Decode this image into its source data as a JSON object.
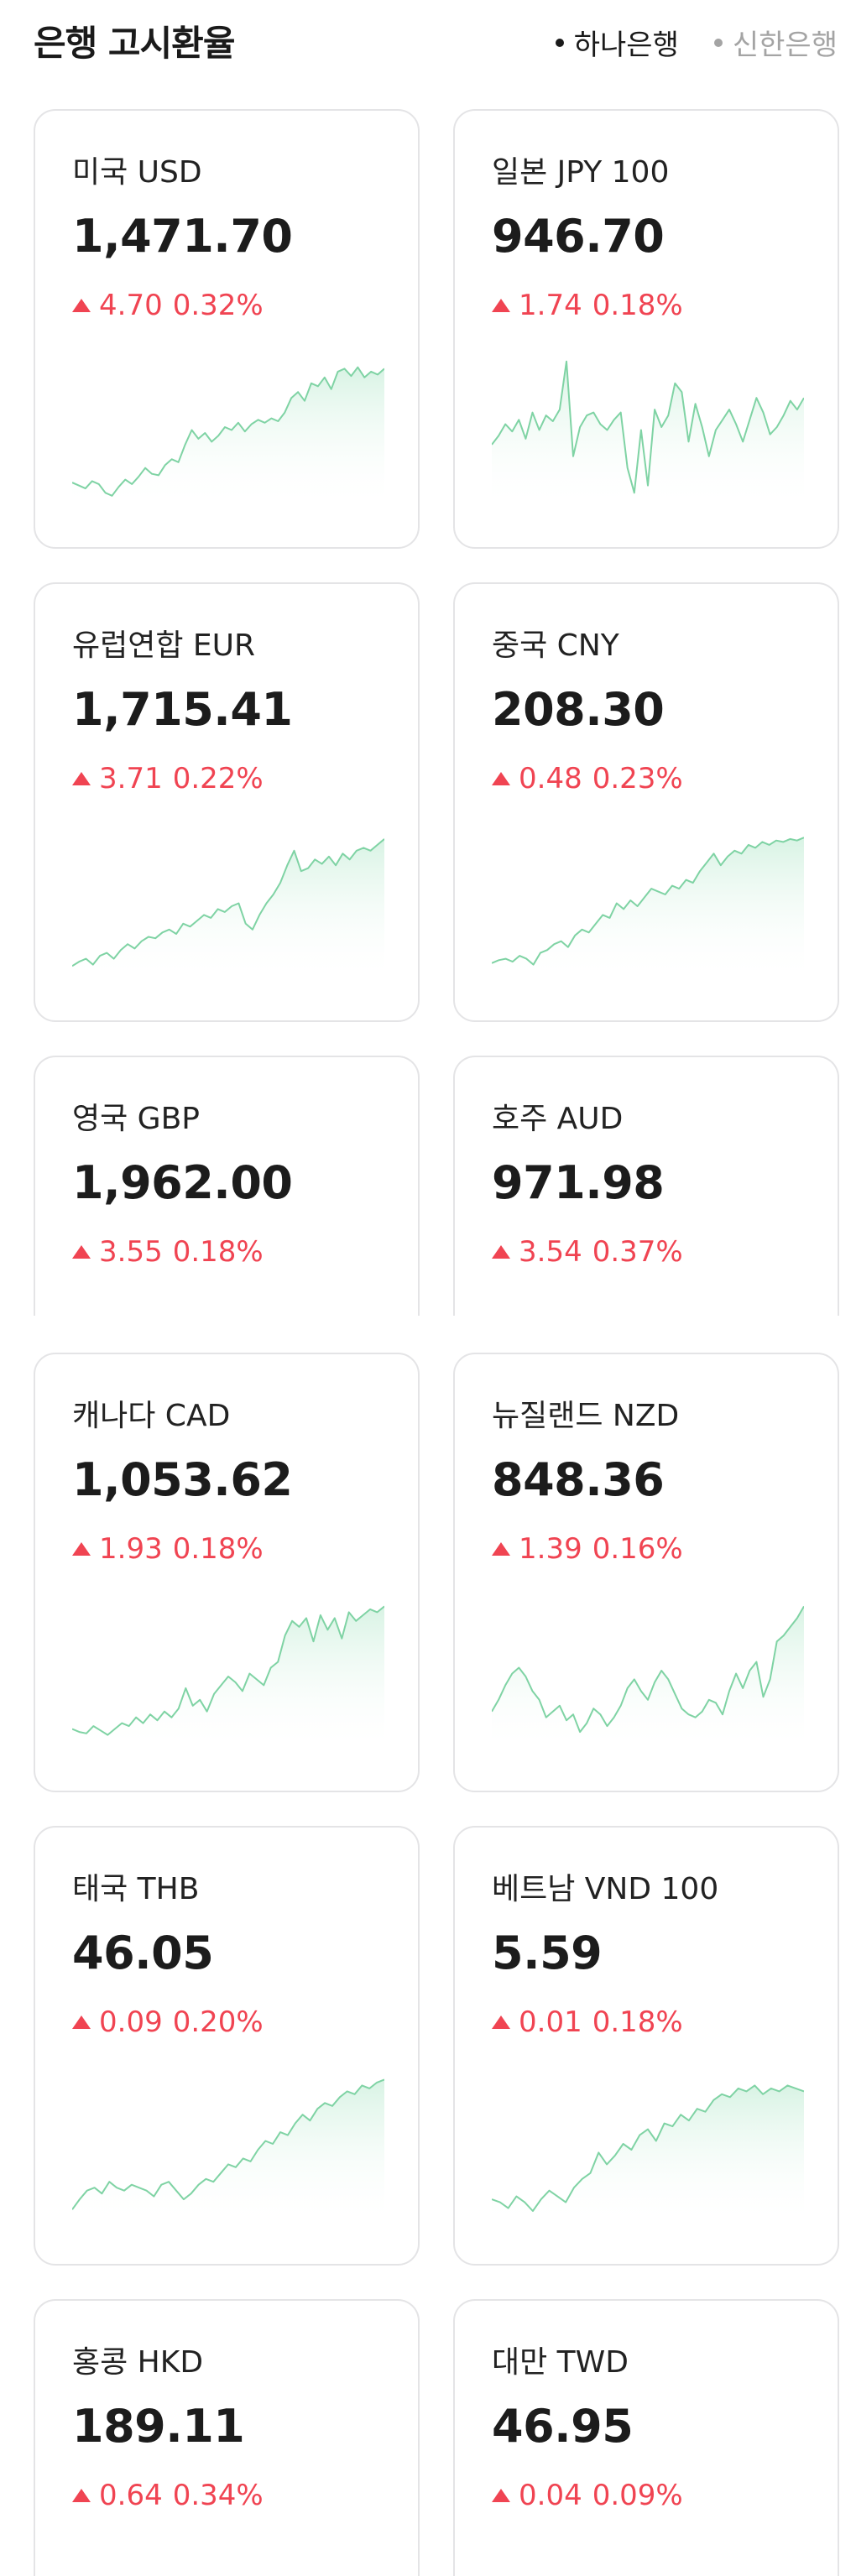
{
  "header": {
    "title": "은행 고시환율",
    "banks": [
      {
        "label": "하나은행",
        "active": true
      },
      {
        "label": "신한은행",
        "active": false
      }
    ]
  },
  "colors": {
    "up": "#f04452",
    "spark_line": "#7fd3a4",
    "spark_fill": "#d8f3e4",
    "card_border": "#e4e4e6"
  },
  "cards": [
    {
      "name": "미국 USD",
      "rate": "1,471.70",
      "change": "4.70",
      "percent": "0.32%",
      "spark": [
        0.12,
        0.1,
        0.08,
        0.13,
        0.11,
        0.05,
        0.03,
        0.09,
        0.14,
        0.11,
        0.16,
        0.22,
        0.18,
        0.17,
        0.24,
        0.28,
        0.26,
        0.38,
        0.48,
        0.42,
        0.46,
        0.4,
        0.44,
        0.5,
        0.48,
        0.53,
        0.47,
        0.52,
        0.55,
        0.53,
        0.56,
        0.54,
        0.6,
        0.7,
        0.74,
        0.68,
        0.8,
        0.78,
        0.84,
        0.76,
        0.88,
        0.9,
        0.85,
        0.91,
        0.84,
        0.88,
        0.86,
        0.9
      ]
    },
    {
      "name": "일본 JPY 100",
      "rate": "946.70",
      "change": "1.74",
      "percent": "0.18%",
      "spark": [
        0.38,
        0.44,
        0.52,
        0.47,
        0.55,
        0.42,
        0.6,
        0.48,
        0.58,
        0.54,
        0.62,
        0.95,
        0.3,
        0.5,
        0.58,
        0.6,
        0.52,
        0.48,
        0.55,
        0.6,
        0.22,
        0.05,
        0.48,
        0.1,
        0.62,
        0.5,
        0.58,
        0.8,
        0.74,
        0.4,
        0.66,
        0.5,
        0.3,
        0.48,
        0.55,
        0.62,
        0.52,
        0.4,
        0.55,
        0.7,
        0.6,
        0.45,
        0.5,
        0.58,
        0.68,
        0.62,
        0.7
      ]
    },
    {
      "name": "유럽연합 EUR",
      "rate": "1,715.41",
      "change": "3.71",
      "percent": "0.22%",
      "spark": [
        0.05,
        0.08,
        0.1,
        0.06,
        0.12,
        0.14,
        0.1,
        0.16,
        0.2,
        0.17,
        0.22,
        0.25,
        0.24,
        0.28,
        0.3,
        0.27,
        0.34,
        0.32,
        0.36,
        0.4,
        0.38,
        0.44,
        0.42,
        0.46,
        0.48,
        0.34,
        0.3,
        0.4,
        0.48,
        0.54,
        0.62,
        0.74,
        0.84,
        0.7,
        0.72,
        0.78,
        0.75,
        0.8,
        0.74,
        0.82,
        0.78,
        0.84,
        0.86,
        0.84,
        0.88,
        0.92
      ]
    },
    {
      "name": "중국 CNY",
      "rate": "208.30",
      "change": "0.48",
      "percent": "0.23%",
      "spark": [
        0.07,
        0.09,
        0.1,
        0.08,
        0.12,
        0.1,
        0.06,
        0.14,
        0.16,
        0.2,
        0.22,
        0.18,
        0.26,
        0.3,
        0.28,
        0.34,
        0.4,
        0.38,
        0.48,
        0.44,
        0.5,
        0.46,
        0.52,
        0.58,
        0.56,
        0.54,
        0.6,
        0.58,
        0.64,
        0.62,
        0.7,
        0.76,
        0.82,
        0.74,
        0.8,
        0.84,
        0.82,
        0.88,
        0.86,
        0.9,
        0.88,
        0.91,
        0.9,
        0.92,
        0.91,
        0.93
      ]
    },
    {
      "name": "영국 GBP",
      "rate": "1,962.00",
      "change": "3.55",
      "percent": "0.18%"
    },
    {
      "name": "호주 AUD",
      "rate": "971.98",
      "change": "3.54",
      "percent": "0.37%"
    },
    {
      "name": "캐나다 CAD",
      "rate": "1,053.62",
      "change": "1.93",
      "percent": "0.18%",
      "spark": [
        0.1,
        0.08,
        0.07,
        0.12,
        0.09,
        0.06,
        0.1,
        0.14,
        0.12,
        0.18,
        0.14,
        0.2,
        0.16,
        0.22,
        0.18,
        0.24,
        0.38,
        0.26,
        0.3,
        0.22,
        0.34,
        0.4,
        0.46,
        0.42,
        0.36,
        0.48,
        0.44,
        0.4,
        0.52,
        0.56,
        0.74,
        0.84,
        0.8,
        0.86,
        0.7,
        0.88,
        0.78,
        0.86,
        0.72,
        0.9,
        0.84,
        0.88,
        0.92,
        0.9,
        0.94
      ]
    },
    {
      "name": "뉴질랜드 NZD",
      "rate": "848.36",
      "change": "1.39",
      "percent": "0.16%",
      "spark": [
        0.22,
        0.3,
        0.4,
        0.48,
        0.52,
        0.46,
        0.36,
        0.3,
        0.18,
        0.22,
        0.26,
        0.16,
        0.2,
        0.08,
        0.14,
        0.24,
        0.2,
        0.12,
        0.18,
        0.26,
        0.38,
        0.44,
        0.36,
        0.3,
        0.42,
        0.5,
        0.44,
        0.34,
        0.24,
        0.2,
        0.18,
        0.22,
        0.3,
        0.28,
        0.2,
        0.36,
        0.48,
        0.38,
        0.5,
        0.56,
        0.32,
        0.44,
        0.7,
        0.74,
        0.8,
        0.86,
        0.94
      ]
    },
    {
      "name": "태국 THB",
      "rate": "46.05",
      "change": "0.09",
      "percent": "0.20%",
      "spark": [
        0.05,
        0.12,
        0.18,
        0.2,
        0.16,
        0.24,
        0.2,
        0.18,
        0.22,
        0.2,
        0.18,
        0.14,
        0.22,
        0.24,
        0.18,
        0.12,
        0.16,
        0.22,
        0.26,
        0.24,
        0.3,
        0.36,
        0.34,
        0.4,
        0.38,
        0.46,
        0.52,
        0.5,
        0.58,
        0.56,
        0.64,
        0.7,
        0.66,
        0.74,
        0.78,
        0.76,
        0.82,
        0.86,
        0.84,
        0.9,
        0.88,
        0.92,
        0.94
      ]
    },
    {
      "name": "베트남 VND 100",
      "rate": "5.59",
      "change": "0.01",
      "percent": "0.18%",
      "spark": [
        0.12,
        0.1,
        0.06,
        0.14,
        0.1,
        0.04,
        0.12,
        0.18,
        0.14,
        0.1,
        0.2,
        0.26,
        0.3,
        0.44,
        0.36,
        0.42,
        0.5,
        0.46,
        0.56,
        0.6,
        0.52,
        0.64,
        0.62,
        0.7,
        0.66,
        0.74,
        0.72,
        0.8,
        0.84,
        0.82,
        0.88,
        0.86,
        0.9,
        0.84,
        0.88,
        0.86,
        0.9,
        0.88,
        0.86
      ]
    },
    {
      "name": "홍콩 HKD",
      "rate": "189.11",
      "change": "0.64",
      "percent": "0.34%"
    },
    {
      "name": "대만 TWD",
      "rate": "46.95",
      "change": "0.04",
      "percent": "0.09%"
    }
  ]
}
